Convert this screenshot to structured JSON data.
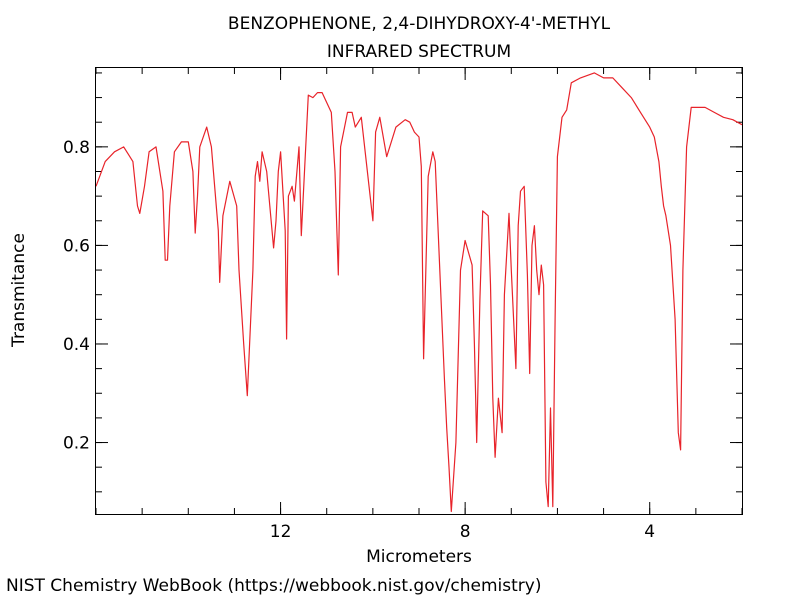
{
  "chart_data": {
    "type": "line",
    "title": "BENZOPHENONE, 2,4-DIHYDROXY-4'-METHYL",
    "subtitle": "INFRARED SPECTRUM",
    "xlabel": "Micrometers",
    "ylabel": "Transmitance",
    "xlim": [
      16.0,
      2.0
    ],
    "ylim": [
      0.055,
      0.96
    ],
    "x_axis_reversed": true,
    "x_ticks": [
      12,
      8,
      4
    ],
    "x_tick_labels": [
      "12",
      "8",
      "4"
    ],
    "y_ticks": [
      0.2,
      0.4,
      0.6,
      0.8
    ],
    "y_tick_labels": [
      "0.2",
      "0.4",
      "0.6",
      "0.8"
    ],
    "grid": false,
    "legend": "none",
    "series": [
      {
        "color": "#e8232a",
        "x": [
          16.0,
          15.8,
          15.6,
          15.4,
          15.2,
          15.1,
          15.05,
          14.95,
          14.85,
          14.7,
          14.55,
          14.5,
          14.45,
          14.4,
          14.3,
          14.15,
          14.0,
          13.9,
          13.85,
          13.8,
          13.75,
          13.6,
          13.5,
          13.35,
          13.32,
          13.25,
          13.1,
          12.95,
          12.9,
          12.8,
          12.72,
          12.6,
          12.55,
          12.5,
          12.45,
          12.4,
          12.3,
          12.15,
          12.1,
          12.05,
          12.0,
          11.9,
          11.87,
          11.83,
          11.75,
          11.7,
          11.6,
          11.55,
          11.4,
          11.3,
          11.2,
          11.1,
          10.9,
          10.82,
          10.75,
          10.7,
          10.55,
          10.45,
          10.38,
          10.25,
          10.0,
          9.94,
          9.85,
          9.7,
          9.5,
          9.3,
          9.2,
          9.1,
          9.0,
          8.95,
          8.9,
          8.8,
          8.7,
          8.65,
          8.45,
          8.4,
          8.35,
          8.3,
          8.2,
          8.1,
          8.0,
          7.85,
          7.8,
          7.75,
          7.68,
          7.62,
          7.5,
          7.45,
          7.4,
          7.35,
          7.28,
          7.2,
          7.15,
          7.05,
          7.0,
          6.9,
          6.85,
          6.8,
          6.72,
          6.65,
          6.6,
          6.55,
          6.5,
          6.45,
          6.4,
          6.35,
          6.3,
          6.25,
          6.2,
          6.15,
          6.1,
          6.05,
          6.0,
          5.9,
          5.8,
          5.7,
          5.5,
          5.2,
          5.0,
          4.8,
          4.6,
          4.4,
          4.2,
          4.0,
          3.9,
          3.8,
          3.75,
          3.7,
          3.65,
          3.55,
          3.45,
          3.38,
          3.33,
          3.28,
          3.2,
          3.1,
          3.0,
          2.8,
          2.6,
          2.4,
          2.2,
          2.0
        ],
        "y": [
          0.72,
          0.77,
          0.79,
          0.8,
          0.77,
          0.68,
          0.665,
          0.72,
          0.79,
          0.8,
          0.71,
          0.57,
          0.57,
          0.68,
          0.79,
          0.81,
          0.81,
          0.75,
          0.625,
          0.7,
          0.8,
          0.84,
          0.8,
          0.63,
          0.525,
          0.66,
          0.73,
          0.68,
          0.55,
          0.4,
          0.295,
          0.55,
          0.74,
          0.77,
          0.73,
          0.79,
          0.75,
          0.595,
          0.65,
          0.75,
          0.79,
          0.63,
          0.41,
          0.7,
          0.72,
          0.69,
          0.8,
          0.62,
          0.905,
          0.9,
          0.91,
          0.91,
          0.87,
          0.75,
          0.54,
          0.8,
          0.87,
          0.87,
          0.84,
          0.86,
          0.65,
          0.83,
          0.86,
          0.78,
          0.84,
          0.855,
          0.85,
          0.83,
          0.82,
          0.76,
          0.37,
          0.74,
          0.79,
          0.77,
          0.33,
          0.23,
          0.15,
          0.06,
          0.2,
          0.55,
          0.61,
          0.56,
          0.4,
          0.2,
          0.49,
          0.67,
          0.66,
          0.52,
          0.29,
          0.17,
          0.29,
          0.22,
          0.5,
          0.665,
          0.55,
          0.35,
          0.64,
          0.71,
          0.72,
          0.54,
          0.34,
          0.6,
          0.64,
          0.55,
          0.5,
          0.56,
          0.52,
          0.12,
          0.07,
          0.27,
          0.07,
          0.45,
          0.78,
          0.86,
          0.875,
          0.93,
          0.94,
          0.95,
          0.94,
          0.94,
          0.92,
          0.9,
          0.87,
          0.84,
          0.82,
          0.77,
          0.72,
          0.68,
          0.66,
          0.6,
          0.45,
          0.22,
          0.185,
          0.55,
          0.8,
          0.88,
          0.88,
          0.88,
          0.87,
          0.86,
          0.855,
          0.845
        ]
      }
    ]
  },
  "footer": {
    "credit": "NIST Chemistry WebBook (https://webbook.nist.gov/chemistry)"
  }
}
